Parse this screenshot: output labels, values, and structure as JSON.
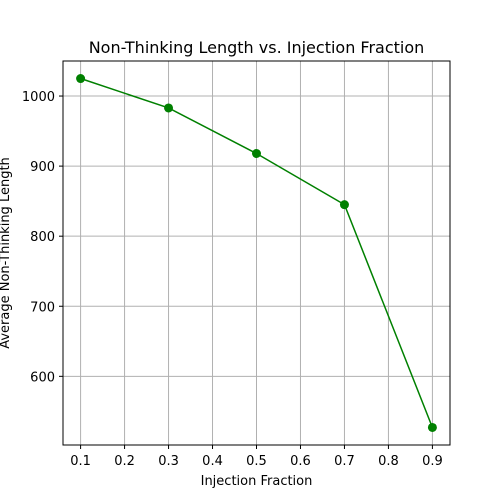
{
  "chart_data": {
    "type": "line",
    "title": "Non-Thinking Length vs. Injection Fraction",
    "xlabel": "Injection Fraction",
    "ylabel": "Average Non-Thinking Length",
    "x": [
      0.1,
      0.3,
      0.5,
      0.7,
      0.9
    ],
    "series": [
      {
        "values": [
          1025,
          983,
          918,
          845,
          527
        ]
      }
    ],
    "xlim": [
      0.06,
      0.94
    ],
    "ylim": [
      502,
      1050
    ],
    "xticks": [
      0.1,
      0.2,
      0.3,
      0.4,
      0.5,
      0.6,
      0.7,
      0.8,
      0.9
    ],
    "xtick_labels": [
      "0.1",
      "0.2",
      "0.3",
      "0.4",
      "0.5",
      "0.6",
      "0.7",
      "0.8",
      "0.9"
    ],
    "yticks": [
      600,
      700,
      800,
      900,
      1000
    ],
    "ytick_labels": [
      "600",
      "700",
      "800",
      "900",
      "1000"
    ],
    "grid": true,
    "line_color": "#008000",
    "marker": "circle"
  }
}
